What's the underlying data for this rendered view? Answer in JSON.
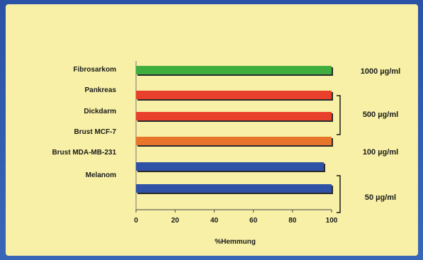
{
  "chart_data": {
    "type": "bar",
    "orientation": "horizontal",
    "categories": [
      "Fibrosarkom",
      "Pankreas",
      "Dickdarm",
      "Brust MCF-7",
      "Brust MDA-MB-231",
      "Melanom"
    ],
    "values": [
      100,
      100,
      100,
      100,
      96,
      100
    ],
    "bar_colors": [
      "#3fae3f",
      "#e8402a",
      "#e8402a",
      "#e8762a",
      "#2f52a6",
      "#2f52a6"
    ],
    "xlabel": "%Hemmung",
    "xlim": [
      0,
      100
    ],
    "xticks": [
      "0",
      "20",
      "40",
      "60",
      "80",
      "100"
    ],
    "dose_labels": [
      "1000 µg/ml",
      "500 µg/ml",
      "100 µg/ml",
      "50 µg/ml"
    ],
    "grid": false
  },
  "colors": {
    "background": "#2d56a8",
    "panel": "#f7f0a6"
  }
}
